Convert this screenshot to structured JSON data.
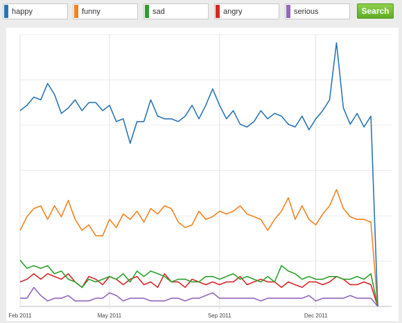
{
  "search": {
    "terms": [
      {
        "value": "happy",
        "color": "#2a75b3"
      },
      {
        "value": "funny",
        "color": "#f5821f"
      },
      {
        "value": "sad",
        "color": "#2ca02c"
      },
      {
        "value": "angry",
        "color": "#d62728"
      },
      {
        "value": "serious",
        "color": "#9467bd"
      }
    ],
    "button_label": "Search"
  },
  "chart_data": {
    "type": "line",
    "title": "",
    "xlabel": "",
    "ylabel": "",
    "x_ticks": [
      {
        "label": "Feb 2011",
        "index": 0
      },
      {
        "label": "May 2011",
        "index": 13
      },
      {
        "label": "Sep 2011",
        "index": 29
      },
      {
        "label": "Dec 2011",
        "index": 43
      }
    ],
    "ylim": [
      0,
      100
    ],
    "grid": "horizontal",
    "legend": "none",
    "series": [
      {
        "name": "happy",
        "color": "#2a75b3",
        "values": [
          72,
          74,
          77,
          76,
          82,
          78,
          71,
          73,
          76,
          72,
          75,
          75,
          72,
          74,
          68,
          69,
          60,
          68,
          68,
          76,
          70,
          69,
          69,
          68,
          70,
          74,
          69,
          74,
          80,
          74,
          69,
          72,
          67,
          66,
          68,
          72,
          69,
          71,
          70,
          67,
          66,
          70,
          65,
          69,
          72,
          76,
          97,
          73,
          67,
          71,
          66,
          70,
          0
        ]
      },
      {
        "name": "funny",
        "color": "#f5821f",
        "values": [
          28,
          33,
          36,
          37,
          32,
          37,
          33,
          39,
          32,
          28,
          30,
          26,
          26,
          32,
          29,
          34,
          32,
          35,
          31,
          36,
          34,
          37,
          36,
          31,
          29,
          30,
          35,
          32,
          33,
          35,
          34,
          35,
          37,
          34,
          33,
          32,
          28,
          32,
          35,
          40,
          32,
          37,
          32,
          30,
          34,
          37,
          43,
          36,
          33,
          32,
          32,
          31,
          0
        ]
      },
      {
        "name": "sad",
        "color": "#2ca02c",
        "values": [
          17,
          14,
          15,
          14,
          15,
          12,
          13,
          10,
          9,
          7,
          10,
          9,
          10,
          11,
          10,
          12,
          9,
          13,
          11,
          13,
          12,
          11,
          9,
          10,
          10,
          9,
          9,
          11,
          11,
          10,
          11,
          12,
          10,
          11,
          10,
          9,
          11,
          9,
          15,
          13,
          12,
          10,
          11,
          10,
          10,
          11,
          11,
          10,
          10,
          11,
          10,
          12,
          0
        ]
      },
      {
        "name": "angry",
        "color": "#d62728",
        "values": [
          9,
          10,
          12,
          10,
          12,
          11,
          10,
          12,
          9,
          7,
          11,
          10,
          8,
          11,
          10,
          8,
          10,
          11,
          8,
          9,
          7,
          12,
          9,
          9,
          7,
          10,
          9,
          8,
          9,
          8,
          9,
          9,
          11,
          8,
          9,
          10,
          9,
          9,
          7,
          9,
          8,
          7,
          9,
          9,
          8,
          9,
          11,
          10,
          8,
          8,
          9,
          8,
          0
        ]
      },
      {
        "name": "serious",
        "color": "#9467bd",
        "values": [
          3,
          3,
          7,
          4,
          2,
          3,
          3,
          4,
          2,
          2,
          2,
          3,
          3,
          5,
          4,
          2,
          3,
          3,
          3,
          2,
          2,
          2,
          3,
          3,
          2,
          3,
          3,
          4,
          5,
          3,
          3,
          3,
          3,
          3,
          3,
          2,
          3,
          3,
          3,
          3,
          3,
          3,
          4,
          2,
          3,
          3,
          3,
          3,
          4,
          3,
          3,
          3,
          0
        ]
      }
    ]
  }
}
